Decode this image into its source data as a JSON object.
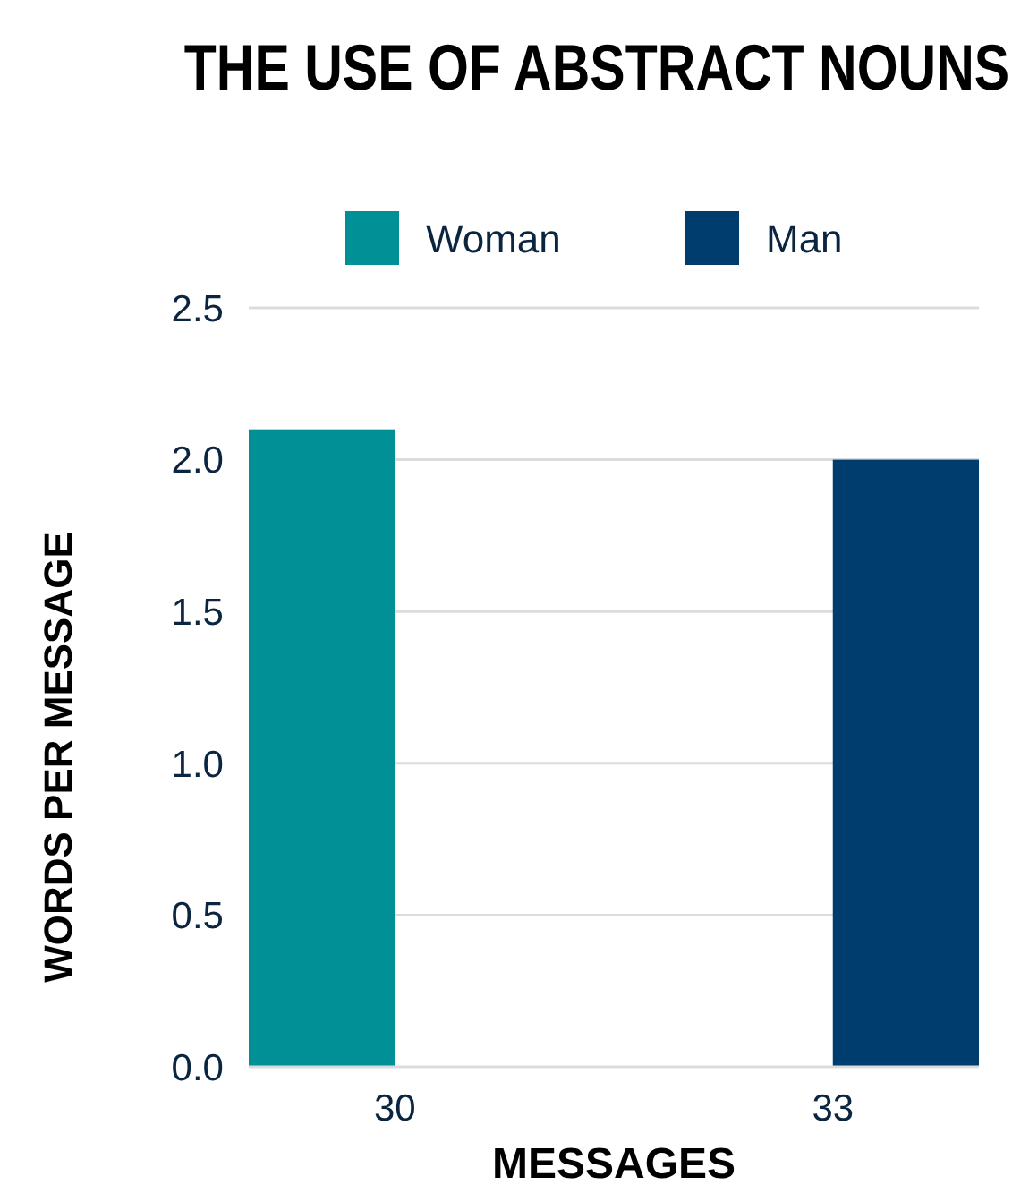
{
  "chart_data": {
    "type": "bar",
    "title": "THE USE OF ABSTRACT NOUNS",
    "xlabel": "MESSAGES",
    "ylabel": "WORDS PER MESSAGE",
    "categories": [
      "30",
      "33"
    ],
    "series": [
      {
        "name": "Woman",
        "color": "#009096",
        "values": [
          2.1,
          null
        ]
      },
      {
        "name": "Man",
        "color": "#003d6f",
        "values": [
          null,
          2.0
        ]
      }
    ],
    "ylim": [
      0,
      2.5
    ],
    "yticks": [
      {
        "value": 0,
        "label": "0.0"
      },
      0.5,
      {
        "value": 1,
        "label": "1.0"
      },
      1.5,
      {
        "value": 2,
        "label": "2.0"
      },
      2.5
    ],
    "grid": "y",
    "legend": "top"
  }
}
